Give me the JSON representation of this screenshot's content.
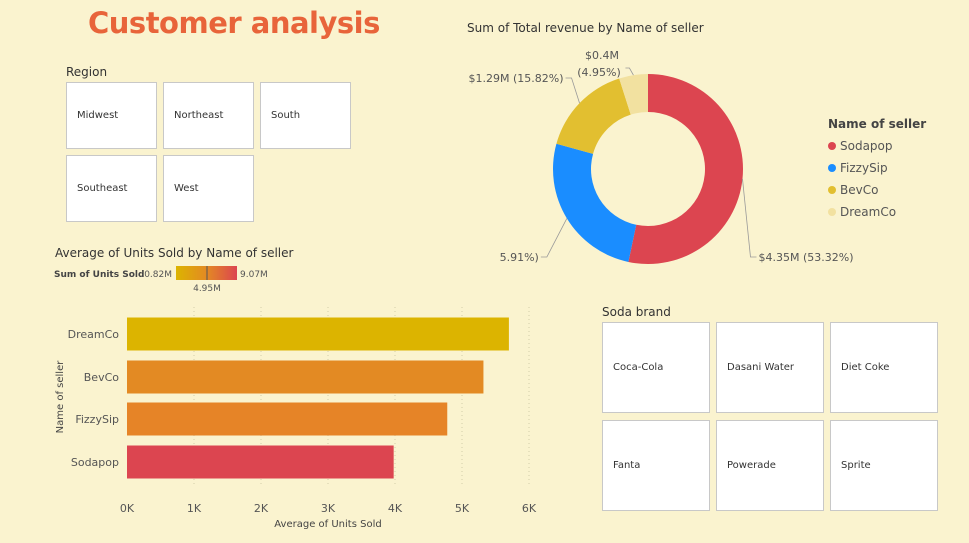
{
  "page": {
    "title": "Customer analysis"
  },
  "region_slicer": {
    "title": "Region",
    "items": [
      "Midwest",
      "Northeast",
      "South",
      "Southeast",
      "West"
    ]
  },
  "brand_slicer": {
    "title": "Soda brand",
    "items": [
      "Coca-Cola",
      "Dasani Water",
      "Diet Coke",
      "Fanta",
      "Powerade",
      "Sprite"
    ]
  },
  "colors": {
    "sodapop": "#DC4550",
    "fizzysip": "#1A8DFF",
    "bevco": "#E2BF30",
    "dreamco": "#F2E1A0"
  },
  "chart_data": [
    {
      "type": "pie",
      "title": "Sum of Total revenue by Name of seller",
      "legend_title": "Name of seller",
      "legend_position": "right",
      "slices": [
        {
          "name": "Sodapop",
          "value": 4.35,
          "label": "$4.35M (53.32%)"
        },
        {
          "name": "FizzySip",
          "value": 2.12,
          "label": "5.91%)"
        },
        {
          "name": "BevCo",
          "value": 1.29,
          "label": "$1.29M (15.82%)"
        },
        {
          "name": "DreamCo",
          "value": 0.4,
          "label_line1": "$0.4M",
          "label_line2": "(4.95%)"
        }
      ]
    },
    {
      "type": "bar",
      "orientation": "horizontal",
      "title": "Average of Units Sold by Name of seller",
      "xlabel": "Average of Units Sold",
      "ylabel": "Name of seller",
      "xlim": [
        0,
        6000
      ],
      "xticks": [
        "0K",
        "1K",
        "2K",
        "3K",
        "4K",
        "5K",
        "6K"
      ],
      "categories": [
        "DreamCo",
        "BevCo",
        "FizzySip",
        "Sodapop"
      ],
      "values": [
        5700,
        5320,
        4780,
        3980
      ],
      "bar_colors": [
        "#DCB400",
        "#E38A23",
        "#E68427",
        "#DC4550"
      ],
      "color_scale": {
        "label": "Sum of Units Sold",
        "min_label": "0.82M",
        "mid_label": "4.95M",
        "max_label": "9.07M"
      },
      "grid": true
    }
  ]
}
